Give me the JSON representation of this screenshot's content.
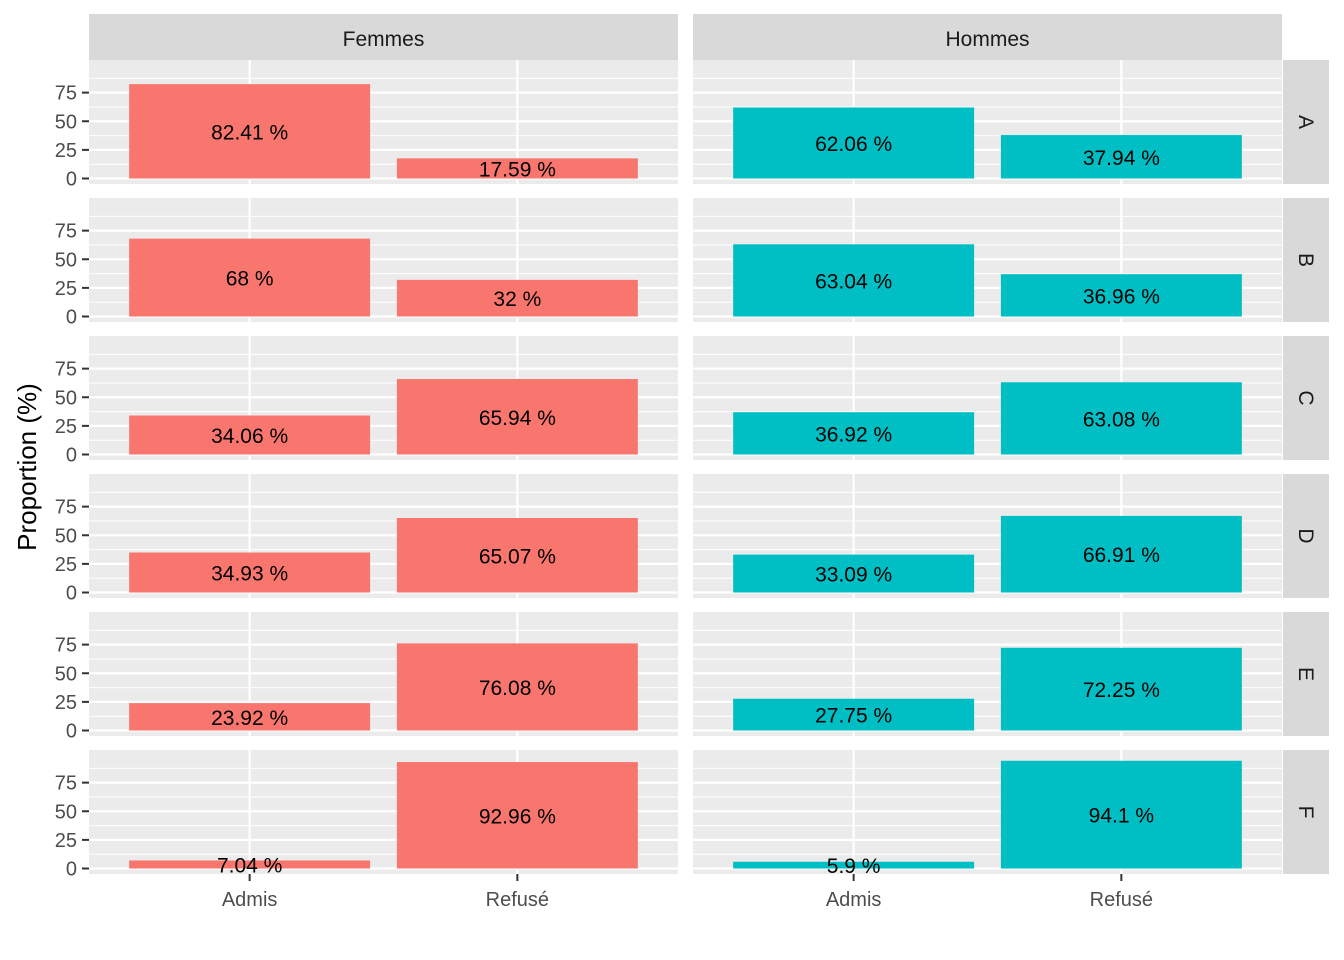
{
  "chart_data": {
    "type": "bar",
    "title": "",
    "xlabel": "",
    "ylabel": "Proportion (%)",
    "ylim": [
      0,
      100
    ],
    "y_ticks": [
      0,
      25,
      50,
      75
    ],
    "categories": [
      "Admis",
      "Refusé"
    ],
    "columns": [
      "Femmes",
      "Hommes"
    ],
    "rows": [
      "A",
      "B",
      "C",
      "D",
      "E",
      "F"
    ],
    "colors": {
      "Femmes": "#F8766D",
      "Hommes": "#00BFC4"
    },
    "panels": [
      {
        "row": "A",
        "col": "Femmes",
        "values": [
          82.41,
          17.59
        ],
        "labels": [
          "82.41 %",
          "17.59 %"
        ]
      },
      {
        "row": "A",
        "col": "Hommes",
        "values": [
          62.06,
          37.94
        ],
        "labels": [
          "62.06 %",
          "37.94 %"
        ]
      },
      {
        "row": "B",
        "col": "Femmes",
        "values": [
          68,
          32
        ],
        "labels": [
          "68 %",
          "32 %"
        ]
      },
      {
        "row": "B",
        "col": "Hommes",
        "values": [
          63.04,
          36.96
        ],
        "labels": [
          "63.04 %",
          "36.96 %"
        ]
      },
      {
        "row": "C",
        "col": "Femmes",
        "values": [
          34.06,
          65.94
        ],
        "labels": [
          "34.06 %",
          "65.94 %"
        ]
      },
      {
        "row": "C",
        "col": "Hommes",
        "values": [
          36.92,
          63.08
        ],
        "labels": [
          "36.92 %",
          "63.08 %"
        ]
      },
      {
        "row": "D",
        "col": "Femmes",
        "values": [
          34.93,
          65.07
        ],
        "labels": [
          "34.93 %",
          "65.07 %"
        ]
      },
      {
        "row": "D",
        "col": "Hommes",
        "values": [
          33.09,
          66.91
        ],
        "labels": [
          "33.09 %",
          "66.91 %"
        ]
      },
      {
        "row": "E",
        "col": "Femmes",
        "values": [
          23.92,
          76.08
        ],
        "labels": [
          "23.92 %",
          "76.08 %"
        ]
      },
      {
        "row": "E",
        "col": "Hommes",
        "values": [
          27.75,
          72.25
        ],
        "labels": [
          "27.75 %",
          "72.25 %"
        ]
      },
      {
        "row": "F",
        "col": "Femmes",
        "values": [
          7.04,
          92.96
        ],
        "labels": [
          "7.04 %",
          "92.96 %"
        ]
      },
      {
        "row": "F",
        "col": "Hommes",
        "values": [
          5.9,
          94.1
        ],
        "labels": [
          "5.9 %",
          "94.1 %"
        ]
      }
    ]
  }
}
